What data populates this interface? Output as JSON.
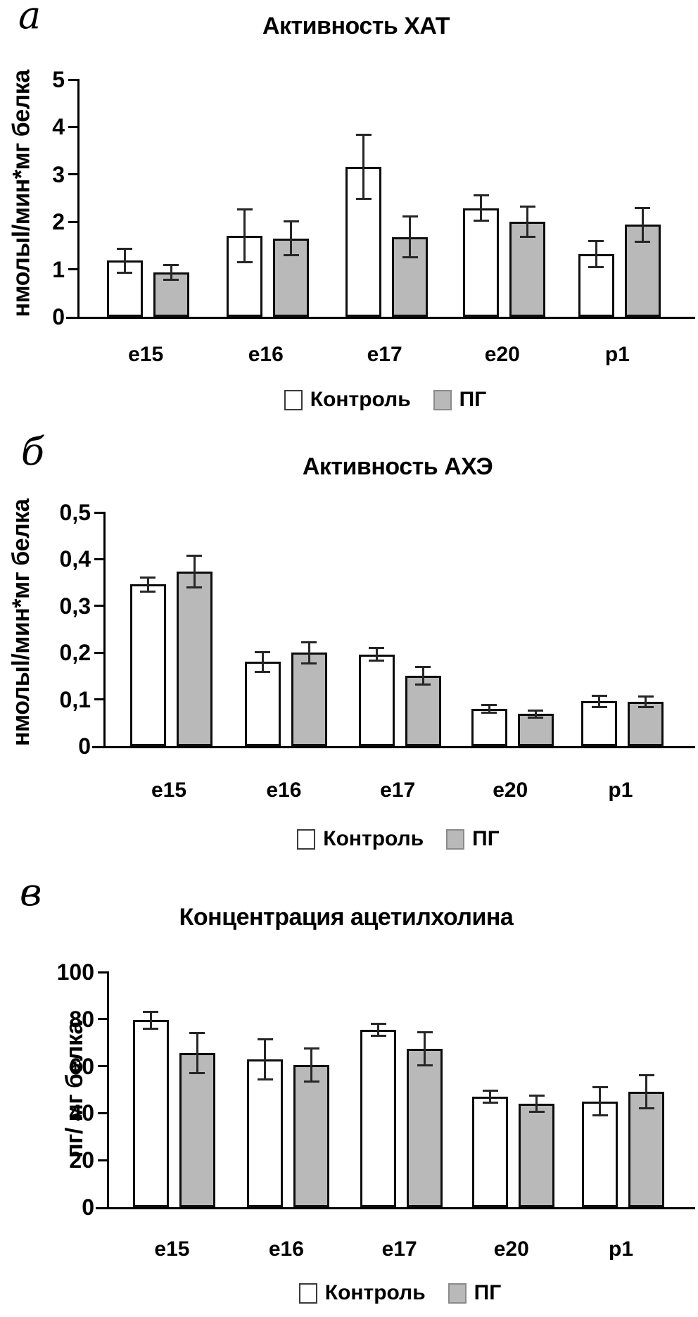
{
  "figure": {
    "background_color": "#ffffff",
    "bar_fill_control": "#ffffff",
    "bar_fill_pg": "#b9b9b9",
    "bar_border_color": "#0d0d0d",
    "error_bar_color": "#262626"
  },
  "chart_data": [
    {
      "type": "bar",
      "panel_label": "а",
      "title": "Активность ХАТ",
      "ylabel": "нмолыl/мин*мг белка",
      "xlabel": "",
      "ylim": [
        0,
        5
      ],
      "yticks": [
        0,
        1,
        2,
        3,
        4,
        5
      ],
      "ytick_labels": [
        "0",
        "1",
        "2",
        "3",
        "4",
        "5"
      ],
      "grid": "off",
      "legend_position": "bottom",
      "categories": [
        "e15",
        "e16",
        "e17",
        "e20",
        "p1"
      ],
      "series": [
        {
          "name": "Контроль",
          "key": "control",
          "fill": "#ffffff",
          "values": [
            1.18,
            1.71,
            3.16,
            2.29,
            1.32
          ],
          "errors": [
            0.27,
            0.58,
            0.7,
            0.29,
            0.3
          ]
        },
        {
          "name": "ПГ",
          "key": "pg",
          "fill": "#b9b9b9",
          "values": [
            0.93,
            1.65,
            1.68,
            2.0,
            1.94
          ],
          "errors": [
            0.18,
            0.38,
            0.45,
            0.34,
            0.38
          ]
        }
      ]
    },
    {
      "type": "bar",
      "panel_label": "б",
      "title": "Активность АХЭ",
      "ylabel": "нмолыl/мин*мг белка",
      "xlabel": "",
      "ylim": [
        0,
        0.5
      ],
      "yticks": [
        0,
        0.1,
        0.2,
        0.3,
        0.4,
        0.5
      ],
      "ytick_labels": [
        "0",
        "0,1",
        "0,2",
        "0,3",
        "0,4",
        "0,5"
      ],
      "grid": "off",
      "legend_position": "bottom",
      "categories": [
        "e15",
        "e16",
        "e17",
        "e20",
        "p1"
      ],
      "series": [
        {
          "name": "Контроль",
          "key": "control",
          "fill": "#ffffff",
          "values": [
            0.346,
            0.18,
            0.196,
            0.08,
            0.096
          ],
          "errors": [
            0.017,
            0.024,
            0.016,
            0.01,
            0.014
          ]
        },
        {
          "name": "ПГ",
          "key": "pg",
          "fill": "#b9b9b9",
          "values": [
            0.373,
            0.2,
            0.15,
            0.069,
            0.095
          ],
          "errors": [
            0.036,
            0.025,
            0.021,
            0.01,
            0.013
          ]
        }
      ]
    },
    {
      "type": "bar",
      "panel_label": "в",
      "title": "Концентрация ацетилхолина",
      "ylabel": "пг/ мг белка",
      "xlabel": "",
      "ylim": [
        0,
        100
      ],
      "yticks": [
        0,
        20,
        40,
        60,
        80,
        100
      ],
      "ytick_labels": [
        "0",
        "20",
        "40",
        "60",
        "80",
        "100"
      ],
      "grid": "off",
      "legend_position": "bottom",
      "categories": [
        "e15",
        "e16",
        "e17",
        "e20",
        "p1"
      ],
      "series": [
        {
          "name": "Контроль",
          "key": "control",
          "fill": "#ffffff",
          "values": [
            79.5,
            63,
            75.5,
            47,
            45
          ],
          "errors": [
            4,
            9,
            3,
            3,
            6.5
          ]
        },
        {
          "name": "ПГ",
          "key": "pg",
          "fill": "#b9b9b9",
          "values": [
            65.5,
            60.5,
            67.5,
            44,
            49
          ],
          "errors": [
            9,
            7.5,
            7.5,
            4,
            7.5
          ]
        }
      ]
    }
  ]
}
